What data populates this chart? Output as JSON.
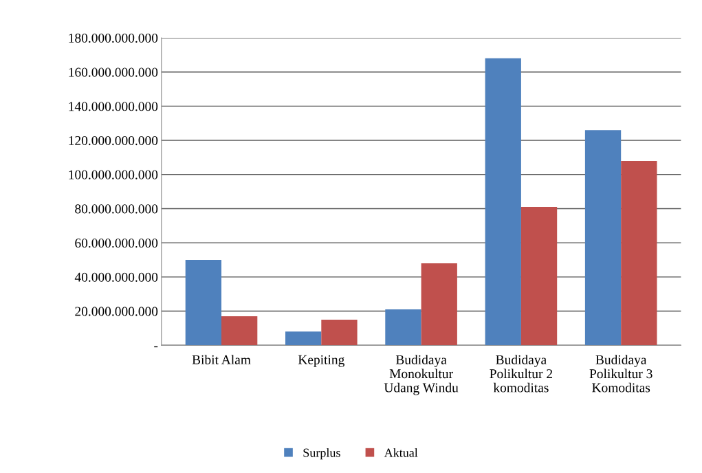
{
  "chart_data": {
    "type": "bar",
    "categories": [
      "Bibit Alam",
      "Kepiting",
      "Budidaya\nMonokultur\nUdang Windu",
      "Budidaya\nPolikultur 2\nkomoditas",
      "Budidaya\nPolikultur 3\nKomoditas"
    ],
    "series": [
      {
        "name": "Surplus",
        "color": "#4f81bd",
        "values": [
          50000000000,
          8000000000,
          21000000000,
          168000000000,
          126000000000
        ]
      },
      {
        "name": "Aktual",
        "color": "#c0504d",
        "values": [
          17000000000,
          15000000000,
          48000000000,
          81000000000,
          108000000000
        ]
      }
    ],
    "ylim": [
      0,
      180000000000
    ],
    "yticks": [
      {
        "value": 0,
        "label": "-"
      },
      {
        "value": 20000000000,
        "label": "20.000.000.000"
      },
      {
        "value": 40000000000,
        "label": "40.000.000.000"
      },
      {
        "value": 60000000000,
        "label": "60.000.000.000"
      },
      {
        "value": 80000000000,
        "label": "80.000.000.000"
      },
      {
        "value": 100000000000,
        "label": "100.000.000.000"
      },
      {
        "value": 120000000000,
        "label": "120.000.000.000"
      },
      {
        "value": 140000000000,
        "label": "140.000.000.000"
      },
      {
        "value": 160000000000,
        "label": "160.000.000.000"
      },
      {
        "value": 180000000000,
        "label": "180.000.000.000"
      }
    ],
    "grid": "y",
    "legend": "bottom"
  }
}
